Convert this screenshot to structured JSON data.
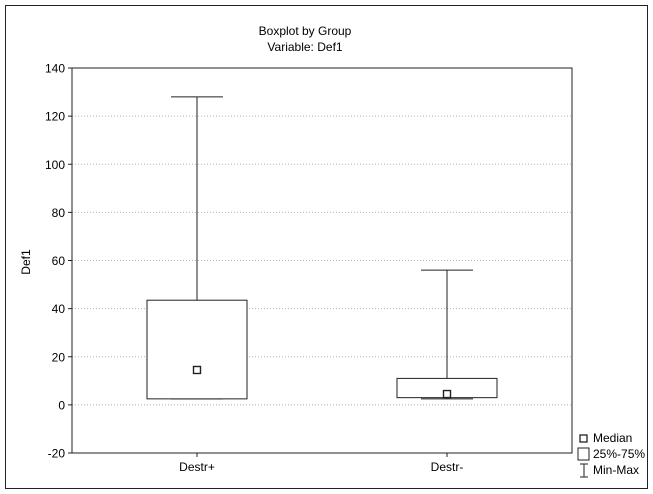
{
  "chart_data": {
    "type": "boxplot",
    "title": "Boxplot by Group",
    "subtitle": "Variable: Def1",
    "xlabel": "",
    "ylabel": "Def1",
    "ylim": [
      -20,
      140
    ],
    "yticks": [
      -20,
      0,
      20,
      40,
      60,
      80,
      100,
      120,
      140
    ],
    "grid": true,
    "legend_position": "bottom-right",
    "categories": [
      "Destr+",
      "Destr-"
    ],
    "boxes": [
      {
        "category": "Destr+",
        "min": 2.5,
        "q1": 2.5,
        "median": 14.5,
        "q3": 43.5,
        "max": 128
      },
      {
        "category": "Destr-",
        "min": 2.5,
        "q1": 3,
        "median": 4.5,
        "q3": 11,
        "max": 56
      }
    ],
    "legend": [
      {
        "key": "median",
        "label": "Median"
      },
      {
        "key": "box",
        "label": "25%-75%"
      },
      {
        "key": "whisker",
        "label": "Min-Max"
      }
    ]
  },
  "colors": {
    "axis": "#222222",
    "grid": "#b5b5b5",
    "box": "#222222",
    "background": "#ffffff"
  }
}
